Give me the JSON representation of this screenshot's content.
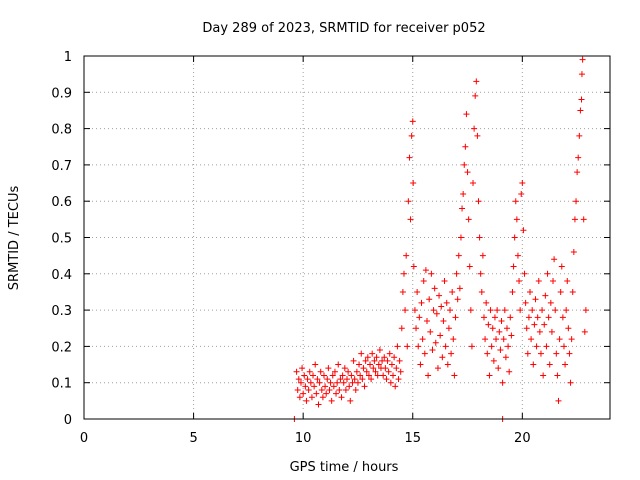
{
  "chart_data": {
    "type": "scatter",
    "title": "Day 289 of 2023, SRMTID for receiver p052",
    "xlabel": "GPS time / hours",
    "ylabel": "SRMTID / TECUs",
    "xlim": [
      0,
      24
    ],
    "ylim": [
      0,
      1
    ],
    "xticks": [
      0,
      5,
      10,
      15,
      20
    ],
    "yticks": [
      0,
      0.1,
      0.2,
      0.3,
      0.4,
      0.5,
      0.6,
      0.7,
      0.8,
      0.9,
      1
    ],
    "xtick_labels": [
      "0",
      "5",
      "10",
      "15",
      "20"
    ],
    "ytick_labels": [
      "0",
      "0.1",
      "0.2",
      "0.3",
      "0.4",
      "0.5",
      "0.6",
      "0.7",
      "0.8",
      "0.9",
      "1"
    ],
    "grid": true,
    "marker": "+",
    "color": "#ff0000",
    "series": [
      {
        "name": "SRMTID",
        "points": [
          [
            9.6,
            0.0
          ],
          [
            19.1,
            0.0
          ],
          [
            9.7,
            0.13
          ],
          [
            9.75,
            0.08
          ],
          [
            9.8,
            0.11
          ],
          [
            9.85,
            0.06
          ],
          [
            9.9,
            0.1
          ],
          [
            9.95,
            0.14
          ],
          [
            10.0,
            0.07
          ],
          [
            10.05,
            0.12
          ],
          [
            10.1,
            0.09
          ],
          [
            10.15,
            0.05
          ],
          [
            10.2,
            0.11
          ],
          [
            10.25,
            0.08
          ],
          [
            10.3,
            0.13
          ],
          [
            10.35,
            0.1
          ],
          [
            10.4,
            0.06
          ],
          [
            10.45,
            0.12
          ],
          [
            10.5,
            0.09
          ],
          [
            10.55,
            0.15
          ],
          [
            10.6,
            0.07
          ],
          [
            10.65,
            0.11
          ],
          [
            10.7,
            0.04
          ],
          [
            10.75,
            0.1
          ],
          [
            10.8,
            0.13
          ],
          [
            10.85,
            0.08
          ],
          [
            10.9,
            0.06
          ],
          [
            10.95,
            0.12
          ],
          [
            11.0,
            0.09
          ],
          [
            11.05,
            0.07
          ],
          [
            11.1,
            0.11
          ],
          [
            11.15,
            0.14
          ],
          [
            11.2,
            0.08
          ],
          [
            11.25,
            0.1
          ],
          [
            11.3,
            0.05
          ],
          [
            11.35,
            0.12
          ],
          [
            11.4,
            0.09
          ],
          [
            11.45,
            0.13
          ],
          [
            11.5,
            0.07
          ],
          [
            11.55,
            0.1
          ],
          [
            11.6,
            0.15
          ],
          [
            11.65,
            0.08
          ],
          [
            11.7,
            0.11
          ],
          [
            11.75,
            0.06
          ],
          [
            11.8,
            0.12
          ],
          [
            11.85,
            0.1
          ],
          [
            11.9,
            0.14
          ],
          [
            11.95,
            0.08
          ],
          [
            12.0,
            0.11
          ],
          [
            12.05,
            0.13
          ],
          [
            12.1,
            0.09
          ],
          [
            12.15,
            0.05
          ],
          [
            12.2,
            0.12
          ],
          [
            12.25,
            0.1
          ],
          [
            12.3,
            0.16
          ],
          [
            12.35,
            0.11
          ],
          [
            12.4,
            0.08
          ],
          [
            12.45,
            0.13
          ],
          [
            12.5,
            0.1
          ],
          [
            12.55,
            0.15
          ],
          [
            12.6,
            0.12
          ],
          [
            12.65,
            0.18
          ],
          [
            12.7,
            0.11
          ],
          [
            12.75,
            0.14
          ],
          [
            12.8,
            0.09
          ],
          [
            12.85,
            0.16
          ],
          [
            12.9,
            0.13
          ],
          [
            12.95,
            0.17
          ],
          [
            13.0,
            0.12
          ],
          [
            13.05,
            0.15
          ],
          [
            13.1,
            0.11
          ],
          [
            13.15,
            0.18
          ],
          [
            13.2,
            0.14
          ],
          [
            13.25,
            0.16
          ],
          [
            13.3,
            0.13
          ],
          [
            13.35,
            0.17
          ],
          [
            13.4,
            0.12
          ],
          [
            13.45,
            0.15
          ],
          [
            13.5,
            0.19
          ],
          [
            13.55,
            0.14
          ],
          [
            13.6,
            0.16
          ],
          [
            13.65,
            0.12
          ],
          [
            13.7,
            0.17
          ],
          [
            13.75,
            0.14
          ],
          [
            13.8,
            0.11
          ],
          [
            13.85,
            0.16
          ],
          [
            13.9,
            0.13
          ],
          [
            13.95,
            0.18
          ],
          [
            14.0,
            0.1
          ],
          [
            14.05,
            0.15
          ],
          [
            14.1,
            0.12
          ],
          [
            14.15,
            0.17
          ],
          [
            14.2,
            0.09
          ],
          [
            14.25,
            0.14
          ],
          [
            14.3,
            0.2
          ],
          [
            14.35,
            0.11
          ],
          [
            14.4,
            0.16
          ],
          [
            14.45,
            0.13
          ],
          [
            14.5,
            0.25
          ],
          [
            14.55,
            0.35
          ],
          [
            14.6,
            0.4
          ],
          [
            14.65,
            0.3
          ],
          [
            14.7,
            0.45
          ],
          [
            14.75,
            0.2
          ],
          [
            14.8,
            0.6
          ],
          [
            14.85,
            0.72
          ],
          [
            14.9,
            0.55
          ],
          [
            14.95,
            0.78
          ],
          [
            15.0,
            0.82
          ],
          [
            15.02,
            0.65
          ],
          [
            15.05,
            0.42
          ],
          [
            15.1,
            0.3
          ],
          [
            15.15,
            0.25
          ],
          [
            15.2,
            0.35
          ],
          [
            15.25,
            0.2
          ],
          [
            15.3,
            0.28
          ],
          [
            15.35,
            0.15
          ],
          [
            15.4,
            0.32
          ],
          [
            15.45,
            0.22
          ],
          [
            15.5,
            0.38
          ],
          [
            15.55,
            0.18
          ],
          [
            15.6,
            0.41
          ],
          [
            15.65,
            0.27
          ],
          [
            15.7,
            0.12
          ],
          [
            15.75,
            0.33
          ],
          [
            15.8,
            0.24
          ],
          [
            15.85,
            0.4
          ],
          [
            15.9,
            0.19
          ],
          [
            15.95,
            0.3
          ],
          [
            16.0,
            0.36
          ],
          [
            16.05,
            0.21
          ],
          [
            16.1,
            0.29
          ],
          [
            16.15,
            0.14
          ],
          [
            16.2,
            0.34
          ],
          [
            16.25,
            0.23
          ],
          [
            16.3,
            0.31
          ],
          [
            16.35,
            0.17
          ],
          [
            16.4,
            0.27
          ],
          [
            16.45,
            0.38
          ],
          [
            16.5,
            0.2
          ],
          [
            16.55,
            0.32
          ],
          [
            16.6,
            0.15
          ],
          [
            16.65,
            0.25
          ],
          [
            16.7,
            0.3
          ],
          [
            16.75,
            0.18
          ],
          [
            16.8,
            0.35
          ],
          [
            16.85,
            0.22
          ],
          [
            16.9,
            0.12
          ],
          [
            16.95,
            0.28
          ],
          [
            17.0,
            0.4
          ],
          [
            17.05,
            0.33
          ],
          [
            17.1,
            0.45
          ],
          [
            17.15,
            0.36
          ],
          [
            17.2,
            0.5
          ],
          [
            17.25,
            0.58
          ],
          [
            17.3,
            0.62
          ],
          [
            17.35,
            0.7
          ],
          [
            17.4,
            0.75
          ],
          [
            17.45,
            0.84
          ],
          [
            17.5,
            0.68
          ],
          [
            17.55,
            0.55
          ],
          [
            17.6,
            0.42
          ],
          [
            17.65,
            0.3
          ],
          [
            17.7,
            0.2
          ],
          [
            17.75,
            0.65
          ],
          [
            17.8,
            0.8
          ],
          [
            17.85,
            0.89
          ],
          [
            17.9,
            0.93
          ],
          [
            17.95,
            0.78
          ],
          [
            18.0,
            0.6
          ],
          [
            18.05,
            0.5
          ],
          [
            18.1,
            0.4
          ],
          [
            18.15,
            0.35
          ],
          [
            18.2,
            0.45
          ],
          [
            18.25,
            0.28
          ],
          [
            18.3,
            0.22
          ],
          [
            18.35,
            0.32
          ],
          [
            18.4,
            0.18
          ],
          [
            18.45,
            0.26
          ],
          [
            18.5,
            0.12
          ],
          [
            18.55,
            0.3
          ],
          [
            18.6,
            0.2
          ],
          [
            18.65,
            0.25
          ],
          [
            18.7,
            0.16
          ],
          [
            18.75,
            0.28
          ],
          [
            18.8,
            0.22
          ],
          [
            18.85,
            0.3
          ],
          [
            18.9,
            0.14
          ],
          [
            18.95,
            0.24
          ],
          [
            19.0,
            0.19
          ],
          [
            19.05,
            0.27
          ],
          [
            19.1,
            0.1
          ],
          [
            19.15,
            0.22
          ],
          [
            19.2,
            0.3
          ],
          [
            19.25,
            0.17
          ],
          [
            19.3,
            0.25
          ],
          [
            19.35,
            0.2
          ],
          [
            19.4,
            0.13
          ],
          [
            19.45,
            0.28
          ],
          [
            19.5,
            0.23
          ],
          [
            19.55,
            0.35
          ],
          [
            19.6,
            0.42
          ],
          [
            19.65,
            0.5
          ],
          [
            19.7,
            0.6
          ],
          [
            19.75,
            0.55
          ],
          [
            19.8,
            0.45
          ],
          [
            19.85,
            0.38
          ],
          [
            19.9,
            0.3
          ],
          [
            19.95,
            0.62
          ],
          [
            20.0,
            0.65
          ],
          [
            20.05,
            0.52
          ],
          [
            20.1,
            0.4
          ],
          [
            20.15,
            0.32
          ],
          [
            20.2,
            0.25
          ],
          [
            20.25,
            0.18
          ],
          [
            20.3,
            0.28
          ],
          [
            20.35,
            0.35
          ],
          [
            20.4,
            0.22
          ],
          [
            20.45,
            0.3
          ],
          [
            20.5,
            0.15
          ],
          [
            20.55,
            0.26
          ],
          [
            20.6,
            0.33
          ],
          [
            20.65,
            0.2
          ],
          [
            20.7,
            0.28
          ],
          [
            20.75,
            0.38
          ],
          [
            20.8,
            0.24
          ],
          [
            20.85,
            0.18
          ],
          [
            20.9,
            0.3
          ],
          [
            20.95,
            0.12
          ],
          [
            21.0,
            0.26
          ],
          [
            21.05,
            0.34
          ],
          [
            21.1,
            0.2
          ],
          [
            21.15,
            0.4
          ],
          [
            21.2,
            0.28
          ],
          [
            21.25,
            0.15
          ],
          [
            21.3,
            0.32
          ],
          [
            21.35,
            0.24
          ],
          [
            21.4,
            0.38
          ],
          [
            21.45,
            0.44
          ],
          [
            21.5,
            0.3
          ],
          [
            21.55,
            0.18
          ],
          [
            21.6,
            0.12
          ],
          [
            21.65,
            0.05
          ],
          [
            21.7,
            0.22
          ],
          [
            21.75,
            0.35
          ],
          [
            21.8,
            0.42
          ],
          [
            21.85,
            0.28
          ],
          [
            21.9,
            0.2
          ],
          [
            21.95,
            0.15
          ],
          [
            22.0,
            0.3
          ],
          [
            22.05,
            0.38
          ],
          [
            22.1,
            0.25
          ],
          [
            22.15,
            0.18
          ],
          [
            22.2,
            0.1
          ],
          [
            22.25,
            0.22
          ],
          [
            22.3,
            0.35
          ],
          [
            22.35,
            0.46
          ],
          [
            22.4,
            0.55
          ],
          [
            22.45,
            0.6
          ],
          [
            22.5,
            0.68
          ],
          [
            22.55,
            0.72
          ],
          [
            22.6,
            0.78
          ],
          [
            22.65,
            0.85
          ],
          [
            22.7,
            0.88
          ],
          [
            22.72,
            0.95
          ],
          [
            22.75,
            0.99
          ],
          [
            22.8,
            0.55
          ],
          [
            22.85,
            0.24
          ],
          [
            22.9,
            0.3
          ]
        ]
      }
    ]
  }
}
